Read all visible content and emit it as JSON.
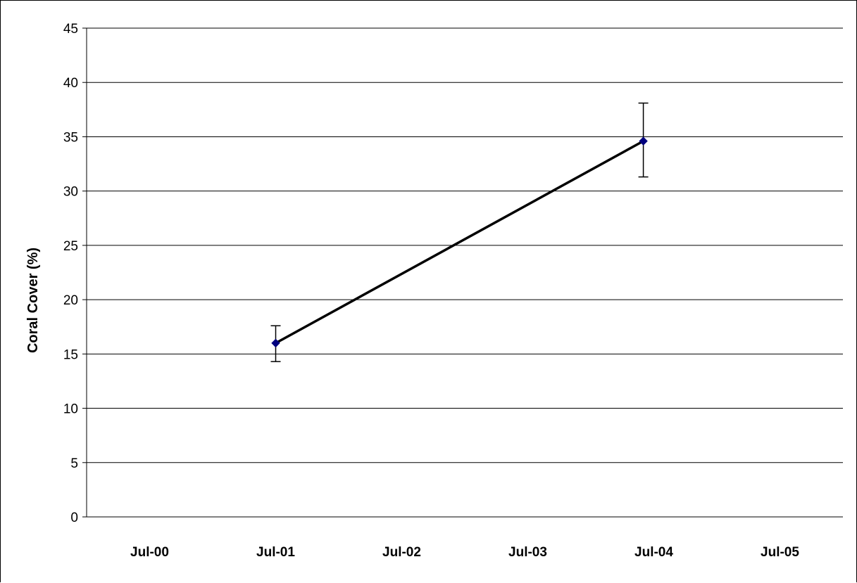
{
  "chart_data": {
    "type": "line",
    "title": "",
    "xlabel": "",
    "ylabel": "Coral Cover (%)",
    "ylim": [
      0,
      45
    ],
    "y_ticks": [
      "0",
      "5",
      "10",
      "15",
      "20",
      "25",
      "30",
      "35",
      "40",
      "45"
    ],
    "x_ticks": [
      "Jul-00",
      "Jul-01",
      "Jul-02",
      "Jul-03",
      "Jul-04",
      "Jul-05"
    ],
    "xlim": [
      "Jan-00",
      "Jan-06"
    ],
    "grid": "horizontal",
    "legend": "none",
    "series": [
      {
        "color": "#000000",
        "marker_color": "#00007F",
        "points": [
          {
            "x": "Jul-01",
            "y": 16.0,
            "y_error_low": 14.3,
            "y_error_high": 17.6
          },
          {
            "x": "Jun-04",
            "y": 34.6,
            "y_error_low": 31.3,
            "y_error_high": 38.1
          }
        ]
      }
    ]
  }
}
